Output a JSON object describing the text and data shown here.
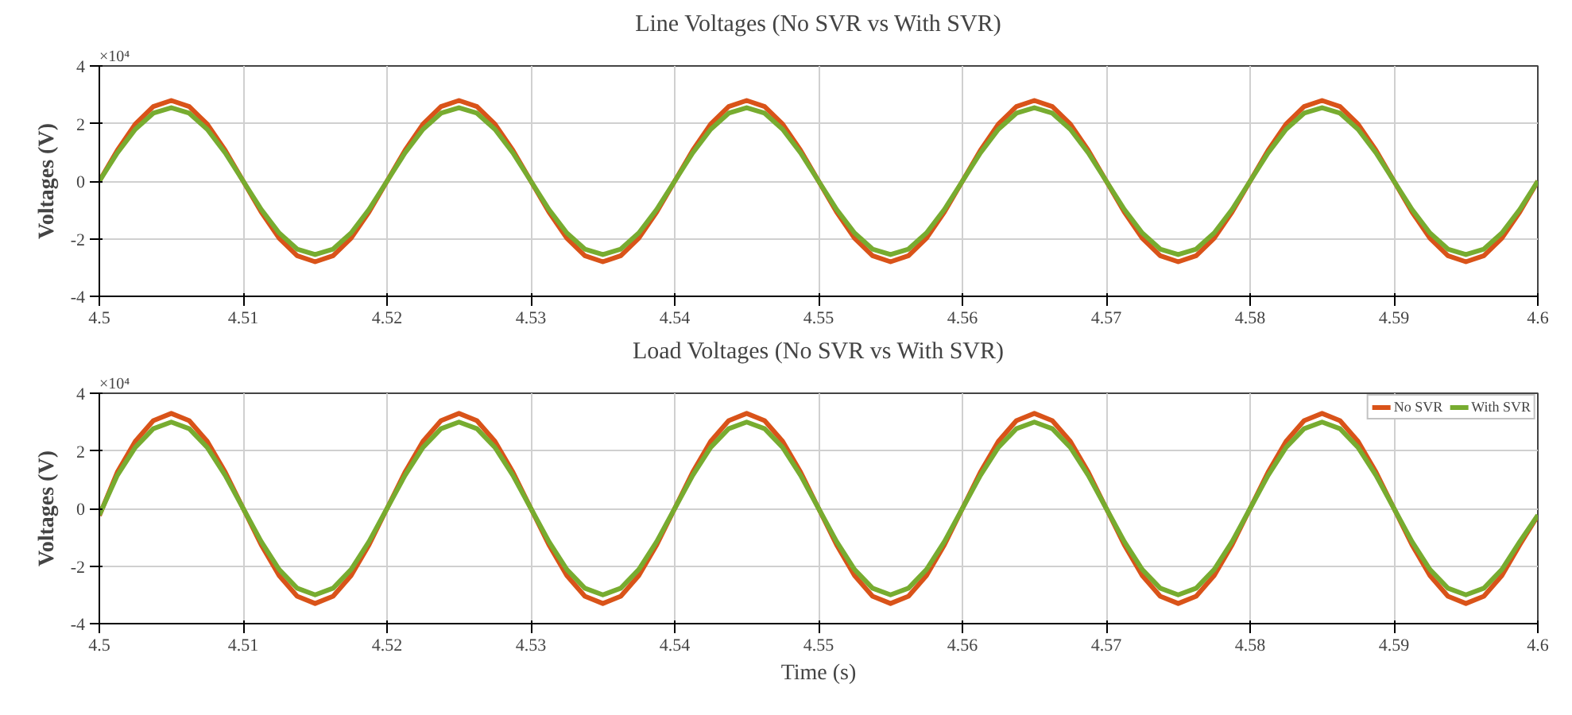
{
  "chart_data": [
    {
      "type": "line",
      "title": "Line Voltages (No SVR vs With SVR)",
      "ylabel": "Voltages (V)",
      "annotations": [
        "×10⁴"
      ],
      "x": [
        4.5,
        4.50125,
        4.5025,
        4.50375,
        4.505,
        4.50625,
        4.5075,
        4.50875,
        4.51,
        4.51125,
        4.5125,
        4.51375,
        4.515,
        4.51625,
        4.5175,
        4.51875,
        4.52,
        4.52125,
        4.5225,
        4.52375,
        4.525,
        4.52625,
        4.5275,
        4.52875,
        4.53,
        4.53125,
        4.5325,
        4.53375,
        4.535,
        4.53625,
        4.5375,
        4.53875,
        4.54,
        4.54125,
        4.5425,
        4.54375,
        4.545,
        4.54625,
        4.5475,
        4.54875,
        4.55,
        4.55125,
        4.5525,
        4.55375,
        4.555,
        4.55625,
        4.5575,
        4.55875,
        4.56,
        4.56125,
        4.5625,
        4.56375,
        4.565,
        4.56625,
        4.5675,
        4.56875,
        4.57,
        4.57125,
        4.5725,
        4.57375,
        4.575,
        4.57625,
        4.5775,
        4.57875,
        4.58,
        4.58125,
        4.5825,
        4.58375,
        4.585,
        4.58625,
        4.5875,
        4.58875,
        4.59,
        4.59125,
        4.5925,
        4.59375,
        4.595,
        4.59625,
        4.5975,
        4.59875,
        4.6
      ],
      "series": [
        {
          "color": "#d95319",
          "values": [
            0,
            1.07,
            1.98,
            2.59,
            2.8,
            2.59,
            1.98,
            1.07,
            0,
            -1.07,
            -1.98,
            -2.59,
            -2.8,
            -2.59,
            -1.98,
            -1.07,
            0,
            1.07,
            1.98,
            2.59,
            2.8,
            2.59,
            1.98,
            1.07,
            0,
            -1.07,
            -1.98,
            -2.59,
            -2.8,
            -2.59,
            -1.98,
            -1.07,
            0,
            1.07,
            1.98,
            2.59,
            2.8,
            2.59,
            1.98,
            1.07,
            0,
            -1.07,
            -1.98,
            -2.59,
            -2.8,
            -2.59,
            -1.98,
            -1.07,
            0,
            1.07,
            1.98,
            2.59,
            2.8,
            2.59,
            1.98,
            1.07,
            0,
            -1.07,
            -1.98,
            -2.59,
            -2.8,
            -2.59,
            -1.98,
            -1.07,
            0,
            1.07,
            1.98,
            2.59,
            2.8,
            2.59,
            1.98,
            1.07,
            0,
            -1.07,
            -1.98,
            -2.59,
            -2.8,
            -2.59,
            -1.98,
            -1.07,
            0
          ]
        },
        {
          "color": "#77ac30",
          "values": [
            0,
            0.98,
            1.8,
            2.36,
            2.55,
            2.36,
            1.8,
            0.98,
            0,
            -0.98,
            -1.8,
            -2.36,
            -2.55,
            -2.36,
            -1.8,
            -0.98,
            0,
            0.98,
            1.8,
            2.36,
            2.55,
            2.36,
            1.8,
            0.98,
            0,
            -0.98,
            -1.8,
            -2.36,
            -2.55,
            -2.36,
            -1.8,
            -0.98,
            0,
            0.98,
            1.8,
            2.36,
            2.55,
            2.36,
            1.8,
            0.98,
            0,
            -0.98,
            -1.8,
            -2.36,
            -2.55,
            -2.36,
            -1.8,
            -0.98,
            0,
            0.98,
            1.8,
            2.36,
            2.55,
            2.36,
            1.8,
            0.98,
            0,
            -0.98,
            -1.8,
            -2.36,
            -2.55,
            -2.36,
            -1.8,
            -0.98,
            0,
            0.98,
            1.8,
            2.36,
            2.55,
            2.36,
            1.8,
            0.98,
            0,
            -0.98,
            -1.8,
            -2.36,
            -2.55,
            -2.36,
            -1.8,
            -0.98,
            0
          ]
        }
      ],
      "xlim": [
        4.5,
        4.6
      ],
      "xticks": [
        4.5,
        4.51,
        4.52,
        4.53,
        4.54,
        4.55,
        4.56,
        4.57,
        4.58,
        4.59,
        4.6
      ],
      "ylim": [
        -4,
        4
      ],
      "yticks": [
        -4,
        -2,
        0,
        2,
        4
      ],
      "grid": true,
      "line_style": "solid"
    },
    {
      "type": "line",
      "title": "Load Voltages (No SVR vs With SVR)",
      "xlabel": "Time (s)",
      "ylabel": "Voltages (V)",
      "annotations": [
        "×10⁴"
      ],
      "x": [
        4.5,
        4.50125,
        4.5025,
        4.50375,
        4.505,
        4.50625,
        4.5075,
        4.50875,
        4.51,
        4.51125,
        4.5125,
        4.51375,
        4.515,
        4.51625,
        4.5175,
        4.51875,
        4.52,
        4.52125,
        4.5225,
        4.52375,
        4.525,
        4.52625,
        4.5275,
        4.52875,
        4.53,
        4.53125,
        4.5325,
        4.53375,
        4.535,
        4.53625,
        4.5375,
        4.53875,
        4.54,
        4.54125,
        4.5425,
        4.54375,
        4.545,
        4.54625,
        4.5475,
        4.54875,
        4.55,
        4.55125,
        4.5525,
        4.55375,
        4.555,
        4.55625,
        4.5575,
        4.55875,
        4.56,
        4.56125,
        4.5625,
        4.56375,
        4.565,
        4.56625,
        4.5675,
        4.56875,
        4.57,
        4.57125,
        4.5725,
        4.57375,
        4.575,
        4.57625,
        4.5775,
        4.57875,
        4.58,
        4.58125,
        4.5825,
        4.58375,
        4.585,
        4.58625,
        4.5875,
        4.58875,
        4.59,
        4.59125,
        4.5925,
        4.59375,
        4.595,
        4.59625,
        4.5975,
        4.59875,
        4.6
      ],
      "series": [
        {
          "name": "No SVR",
          "color": "#d95319",
          "values": [
            -0.25,
            1.26,
            2.33,
            3.05,
            3.3,
            3.05,
            2.33,
            1.26,
            0,
            -1.26,
            -2.33,
            -3.05,
            -3.3,
            -3.05,
            -2.33,
            -1.26,
            0,
            1.26,
            2.33,
            3.05,
            3.3,
            3.05,
            2.33,
            1.26,
            0,
            -1.26,
            -2.33,
            -3.05,
            -3.3,
            -3.05,
            -2.33,
            -1.26,
            0,
            1.26,
            2.33,
            3.05,
            3.3,
            3.05,
            2.33,
            1.26,
            0,
            -1.26,
            -2.33,
            -3.05,
            -3.3,
            -3.05,
            -2.33,
            -1.26,
            0,
            1.26,
            2.33,
            3.05,
            3.3,
            3.05,
            2.33,
            1.26,
            0,
            -1.26,
            -2.33,
            -3.05,
            -3.3,
            -3.05,
            -2.33,
            -1.26,
            0,
            1.26,
            2.33,
            3.05,
            3.3,
            3.05,
            2.33,
            1.26,
            0,
            -1.26,
            -2.33,
            -3.05,
            -3.3,
            -3.05,
            -2.33,
            -1.26,
            -0.25
          ]
        },
        {
          "name": "With SVR",
          "color": "#77ac30",
          "values": [
            -0.23,
            1.15,
            2.12,
            2.77,
            3.0,
            2.77,
            2.12,
            1.15,
            0,
            -1.15,
            -2.12,
            -2.77,
            -3.0,
            -2.77,
            -2.12,
            -1.15,
            0,
            1.15,
            2.12,
            2.77,
            3.0,
            2.77,
            2.12,
            1.15,
            0,
            -1.15,
            -2.12,
            -2.77,
            -3.0,
            -2.77,
            -2.12,
            -1.15,
            0,
            1.15,
            2.12,
            2.77,
            3.0,
            2.77,
            2.12,
            1.15,
            0,
            -1.15,
            -2.12,
            -2.77,
            -3.0,
            -2.77,
            -2.12,
            -1.15,
            0,
            1.15,
            2.12,
            2.77,
            3.0,
            2.77,
            2.12,
            1.15,
            0,
            -1.15,
            -2.12,
            -2.77,
            -3.0,
            -2.77,
            -2.12,
            -1.15,
            0,
            1.15,
            2.12,
            2.77,
            3.0,
            2.77,
            2.12,
            1.15,
            0,
            -1.15,
            -2.12,
            -2.77,
            -3.0,
            -2.77,
            -2.12,
            -1.15,
            -0.23
          ]
        }
      ],
      "xlim": [
        4.5,
        4.6
      ],
      "xticks": [
        4.5,
        4.51,
        4.52,
        4.53,
        4.54,
        4.55,
        4.56,
        4.57,
        4.58,
        4.59,
        4.6
      ],
      "ylim": [
        -4,
        4
      ],
      "yticks": [
        -4,
        -2,
        0,
        2,
        4
      ],
      "grid": true,
      "legend": "top right",
      "line_style": "solid"
    }
  ]
}
